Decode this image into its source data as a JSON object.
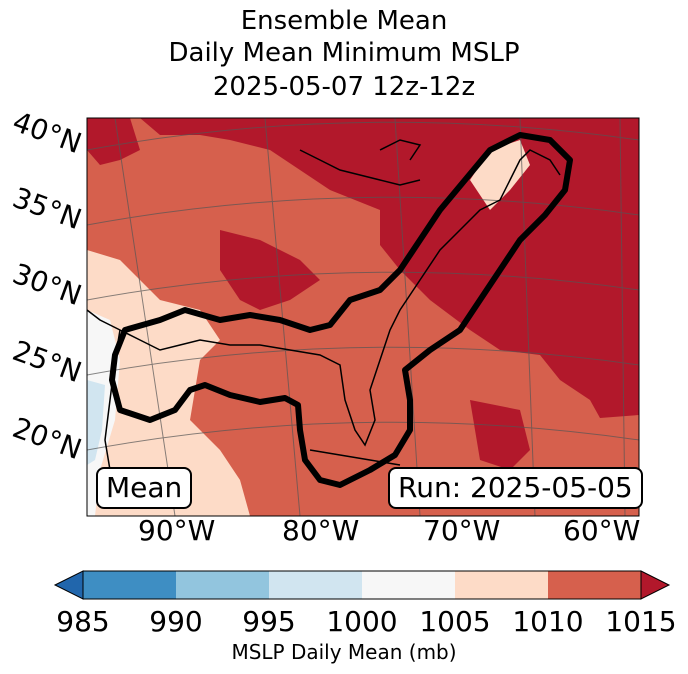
{
  "title": {
    "line1": "Ensemble Mean",
    "line2": "Daily Mean Minimum MSLP",
    "line3": "2025-05-07 12z-12z"
  },
  "lat_labels": [
    "40°N",
    "35°N",
    "30°N",
    "25°N",
    "20°N"
  ],
  "lon_labels": [
    "90°W",
    "80°W",
    "70°W",
    "60°W"
  ],
  "mean_box": "Mean",
  "run_box": "Run: 2025-05-05",
  "colorbar": {
    "ticks": [
      "985",
      "990",
      "995",
      "1000",
      "1005",
      "1010",
      "1015"
    ],
    "label": "MSLP Daily Mean (mb)",
    "colors": [
      "#2166ac",
      "#3e8ec3",
      "#92c5de",
      "#d1e5f0",
      "#f7f7f7",
      "#fddbc7",
      "#d6604d",
      "#b2182b"
    ]
  },
  "levels_mb": [
    985,
    990,
    995,
    1000,
    1005,
    1010,
    1015
  ]
}
